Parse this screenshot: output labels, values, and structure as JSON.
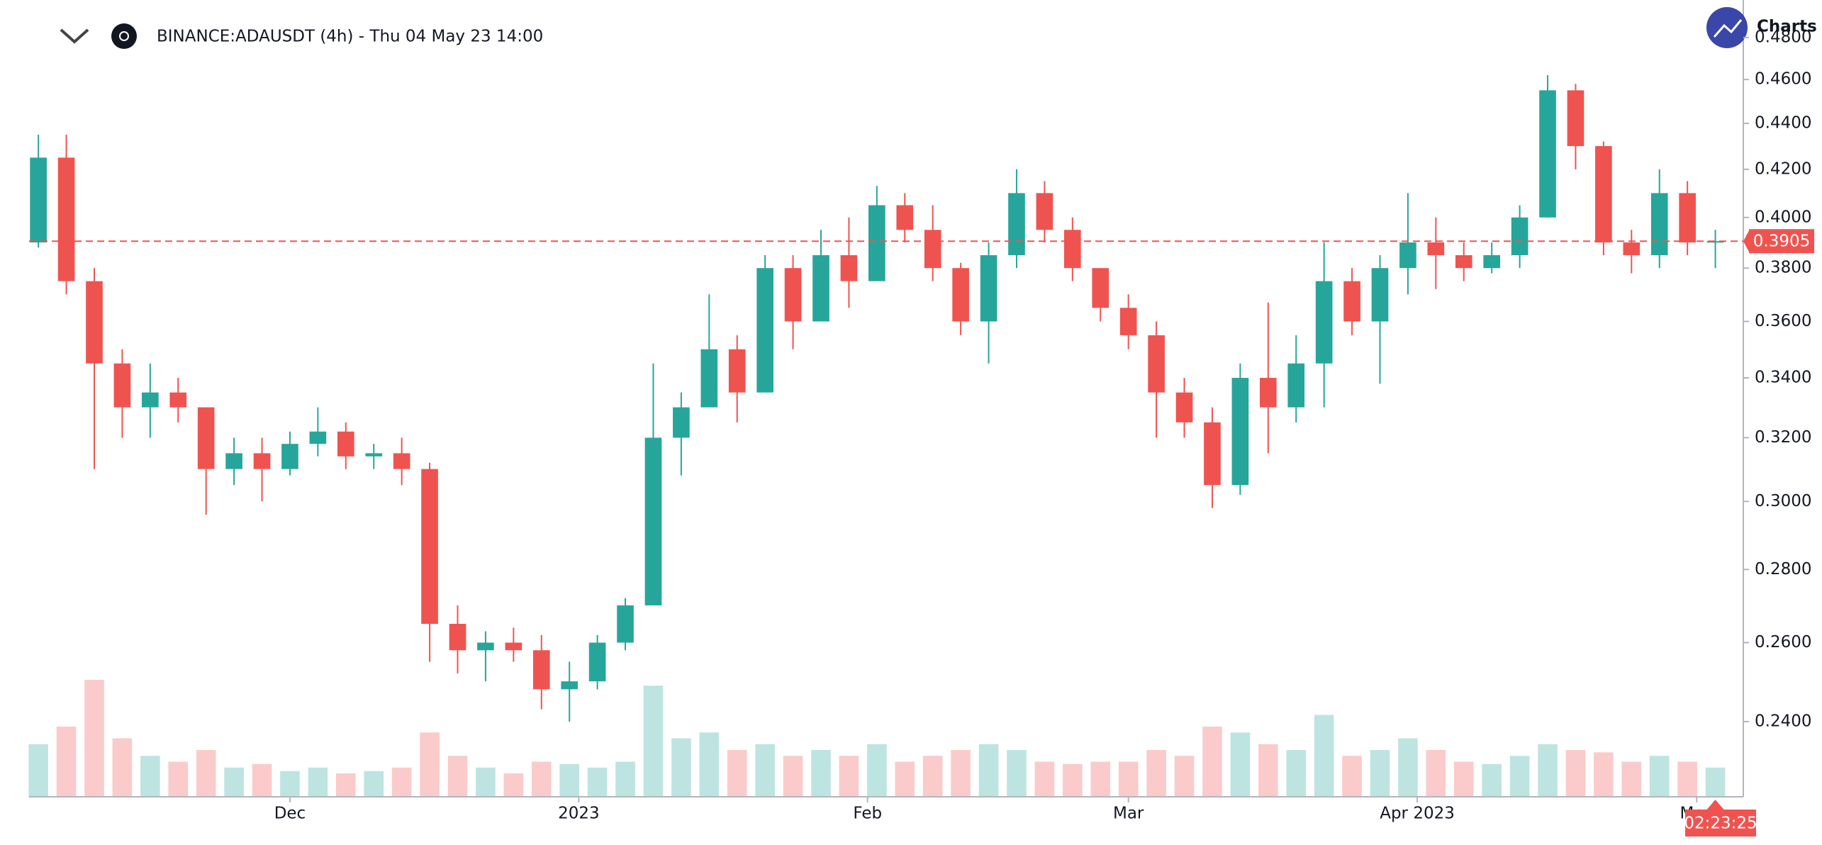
{
  "chart_data": {
    "type": "candlestick",
    "title": "BINANCE:ADAUSDT (4h) - Thu 04 May 23 14:00",
    "logo_text": "Charts",
    "countdown": "02:23:25",
    "last_price": 0.3905,
    "up_color": "#26a69a",
    "down_color": "#ef5350",
    "log_scale": true,
    "x": [
      "2022-11-04",
      "2022-11-07",
      "2022-11-10",
      "2022-11-13",
      "2022-11-16",
      "2022-11-19",
      "2022-11-22",
      "2022-11-25",
      "2022-11-28",
      "2022-12-01",
      "2022-12-04",
      "2022-12-07",
      "2022-12-10",
      "2022-12-13",
      "2022-12-16",
      "2022-12-19",
      "2022-12-22",
      "2022-12-25",
      "2022-12-28",
      "2022-12-31",
      "2023-01-03",
      "2023-01-06",
      "2023-01-09",
      "2023-01-12",
      "2023-01-15",
      "2023-01-18",
      "2023-01-21",
      "2023-01-24",
      "2023-01-27",
      "2023-01-30",
      "2023-02-02",
      "2023-02-05",
      "2023-02-08",
      "2023-02-11",
      "2023-02-14",
      "2023-02-17",
      "2023-02-20",
      "2023-02-23",
      "2023-02-26",
      "2023-03-01",
      "2023-03-04",
      "2023-03-07",
      "2023-03-10",
      "2023-03-13",
      "2023-03-16",
      "2023-03-19",
      "2023-03-22",
      "2023-03-25",
      "2023-03-28",
      "2023-03-31",
      "2023-04-03",
      "2023-04-06",
      "2023-04-09",
      "2023-04-12",
      "2023-04-15",
      "2023-04-18",
      "2023-04-21",
      "2023-04-24",
      "2023-04-27",
      "2023-04-30",
      "2023-05-03"
    ],
    "open": [
      0.39,
      0.425,
      0.375,
      0.345,
      0.33,
      0.335,
      0.33,
      0.31,
      0.315,
      0.31,
      0.318,
      0.322,
      0.314,
      0.315,
      0.31,
      0.265,
      0.258,
      0.26,
      0.258,
      0.248,
      0.25,
      0.26,
      0.27,
      0.32,
      0.33,
      0.35,
      0.335,
      0.38,
      0.36,
      0.385,
      0.375,
      0.405,
      0.395,
      0.38,
      0.36,
      0.385,
      0.41,
      0.395,
      0.38,
      0.365,
      0.355,
      0.335,
      0.325,
      0.305,
      0.34,
      0.33,
      0.345,
      0.375,
      0.36,
      0.38,
      0.39,
      0.385,
      0.38,
      0.385,
      0.4,
      0.455,
      0.43,
      0.39,
      0.385,
      0.41,
      0.39
    ],
    "high": [
      0.435,
      0.435,
      0.38,
      0.35,
      0.345,
      0.34,
      0.33,
      0.32,
      0.32,
      0.322,
      0.33,
      0.325,
      0.318,
      0.32,
      0.312,
      0.27,
      0.263,
      0.264,
      0.262,
      0.255,
      0.262,
      0.272,
      0.345,
      0.335,
      0.37,
      0.355,
      0.385,
      0.385,
      0.395,
      0.4,
      0.413,
      0.41,
      0.405,
      0.382,
      0.39,
      0.42,
      0.415,
      0.4,
      0.38,
      0.37,
      0.36,
      0.34,
      0.33,
      0.345,
      0.367,
      0.355,
      0.39,
      0.38,
      0.385,
      0.41,
      0.4,
      0.39,
      0.39,
      0.405,
      0.462,
      0.458,
      0.432,
      0.395,
      0.42,
      0.415,
      0.395
    ],
    "low": [
      0.388,
      0.37,
      0.31,
      0.32,
      0.32,
      0.325,
      0.296,
      0.305,
      0.3,
      0.308,
      0.314,
      0.31,
      0.31,
      0.305,
      0.255,
      0.252,
      0.25,
      0.255,
      0.243,
      0.24,
      0.248,
      0.258,
      0.27,
      0.308,
      0.33,
      0.325,
      0.335,
      0.35,
      0.36,
      0.365,
      0.375,
      0.39,
      0.375,
      0.355,
      0.345,
      0.38,
      0.39,
      0.375,
      0.36,
      0.35,
      0.32,
      0.32,
      0.298,
      0.302,
      0.315,
      0.325,
      0.33,
      0.355,
      0.338,
      0.37,
      0.372,
      0.375,
      0.378,
      0.38,
      0.4,
      0.42,
      0.385,
      0.378,
      0.38,
      0.385,
      0.38
    ],
    "close": [
      0.425,
      0.375,
      0.345,
      0.33,
      0.335,
      0.33,
      0.31,
      0.315,
      0.31,
      0.318,
      0.322,
      0.314,
      0.315,
      0.31,
      0.265,
      0.258,
      0.26,
      0.258,
      0.248,
      0.25,
      0.26,
      0.27,
      0.32,
      0.33,
      0.35,
      0.335,
      0.38,
      0.36,
      0.385,
      0.375,
      0.405,
      0.395,
      0.38,
      0.36,
      0.385,
      0.41,
      0.395,
      0.38,
      0.365,
      0.355,
      0.335,
      0.325,
      0.305,
      0.34,
      0.33,
      0.345,
      0.375,
      0.36,
      0.38,
      0.39,
      0.385,
      0.38,
      0.385,
      0.4,
      0.455,
      0.43,
      0.39,
      0.385,
      0.41,
      0.39,
      0.3905
    ],
    "volume": [
      45,
      60,
      100,
      50,
      35,
      30,
      40,
      25,
      28,
      22,
      25,
      20,
      22,
      25,
      55,
      35,
      25,
      20,
      30,
      28,
      25,
      30,
      95,
      50,
      55,
      40,
      45,
      35,
      40,
      35,
      45,
      30,
      35,
      40,
      45,
      40,
      30,
      28,
      30,
      30,
      40,
      35,
      60,
      55,
      45,
      40,
      70,
      35,
      40,
      50,
      40,
      30,
      28,
      35,
      45,
      40,
      38,
      30,
      35,
      30,
      25
    ],
    "ylim": [
      0.2224,
      0.4986
    ],
    "yticks": [
      {
        "value": 0.24,
        "label": "0.2400"
      },
      {
        "value": 0.26,
        "label": "0.2600"
      },
      {
        "value": 0.28,
        "label": "0.2800"
      },
      {
        "value": 0.3,
        "label": "0.3000"
      },
      {
        "value": 0.32,
        "label": "0.3200"
      },
      {
        "value": 0.34,
        "label": "0.3400"
      },
      {
        "value": 0.36,
        "label": "0.3600"
      },
      {
        "value": 0.38,
        "label": "0.3800"
      },
      {
        "value": 0.4,
        "label": "0.4000"
      },
      {
        "value": 0.42,
        "label": "0.4200"
      },
      {
        "value": 0.44,
        "label": "0.4400"
      },
      {
        "value": 0.46,
        "label": "0.4600"
      },
      {
        "value": 0.48,
        "label": "0.4800"
      }
    ],
    "xlim": [
      "2022-11-03",
      "2023-05-06"
    ],
    "xticks": [
      {
        "value": "2022-12-01",
        "label": "Dec"
      },
      {
        "value": "2023-01-01",
        "label": "2023"
      },
      {
        "value": "2023-02-01",
        "label": "Feb"
      },
      {
        "value": "2023-03-01",
        "label": "Mar"
      },
      {
        "value": "2023-04-01",
        "label": "Apr 2023"
      },
      {
        "value": "2023-05-01",
        "label": "May"
      }
    ]
  }
}
